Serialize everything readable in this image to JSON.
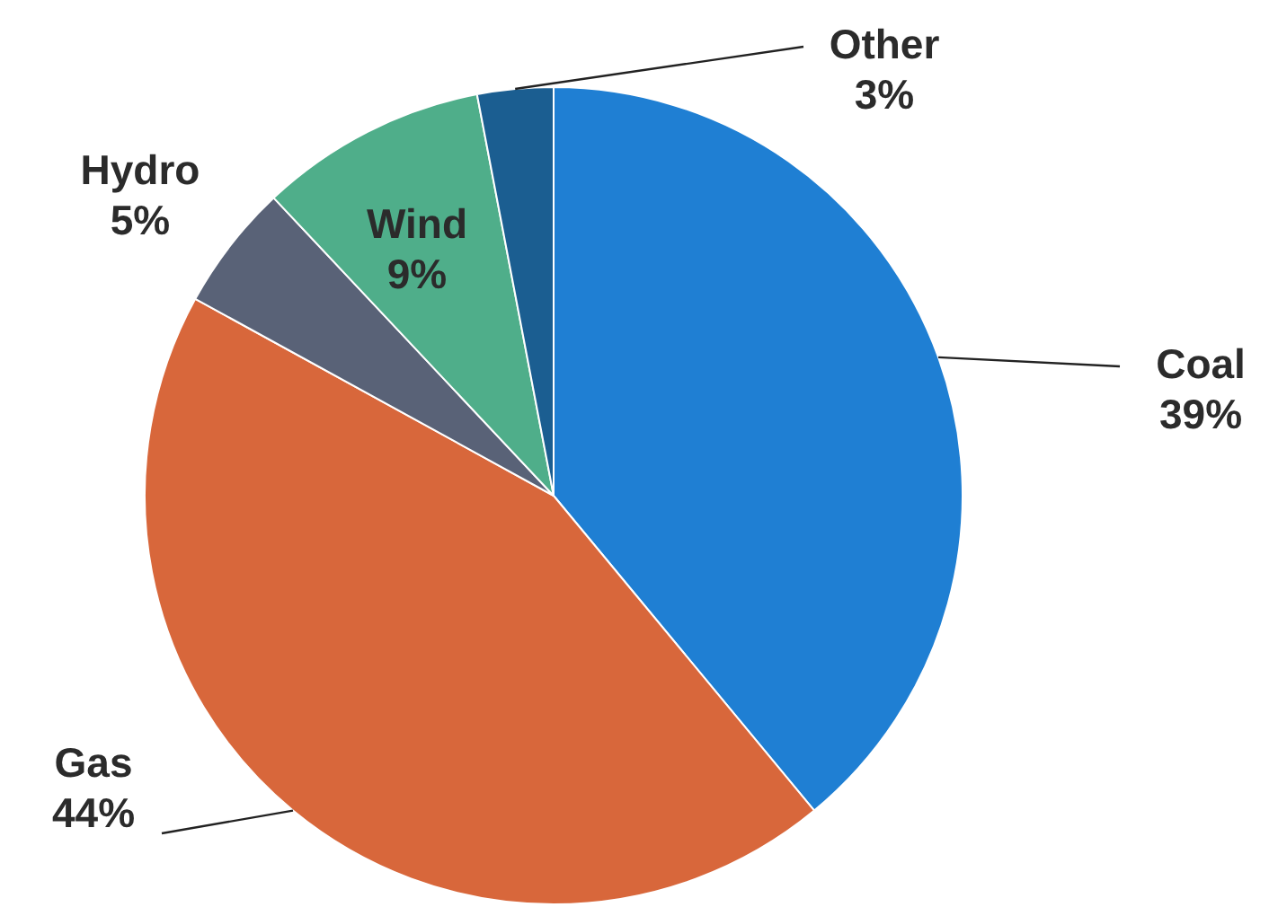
{
  "chart_data": {
    "type": "pie",
    "categories": [
      "Coal",
      "Gas",
      "Hydro",
      "Wind",
      "Other"
    ],
    "values": [
      39,
      44,
      5,
      9,
      3
    ],
    "colors": [
      "#1f7fd3",
      "#d8673b",
      "#596277",
      "#4fae8a",
      "#1b5e91"
    ],
    "value_labels": [
      "39%",
      "44%",
      "5%",
      "9%",
      "3%"
    ],
    "legend": false
  }
}
